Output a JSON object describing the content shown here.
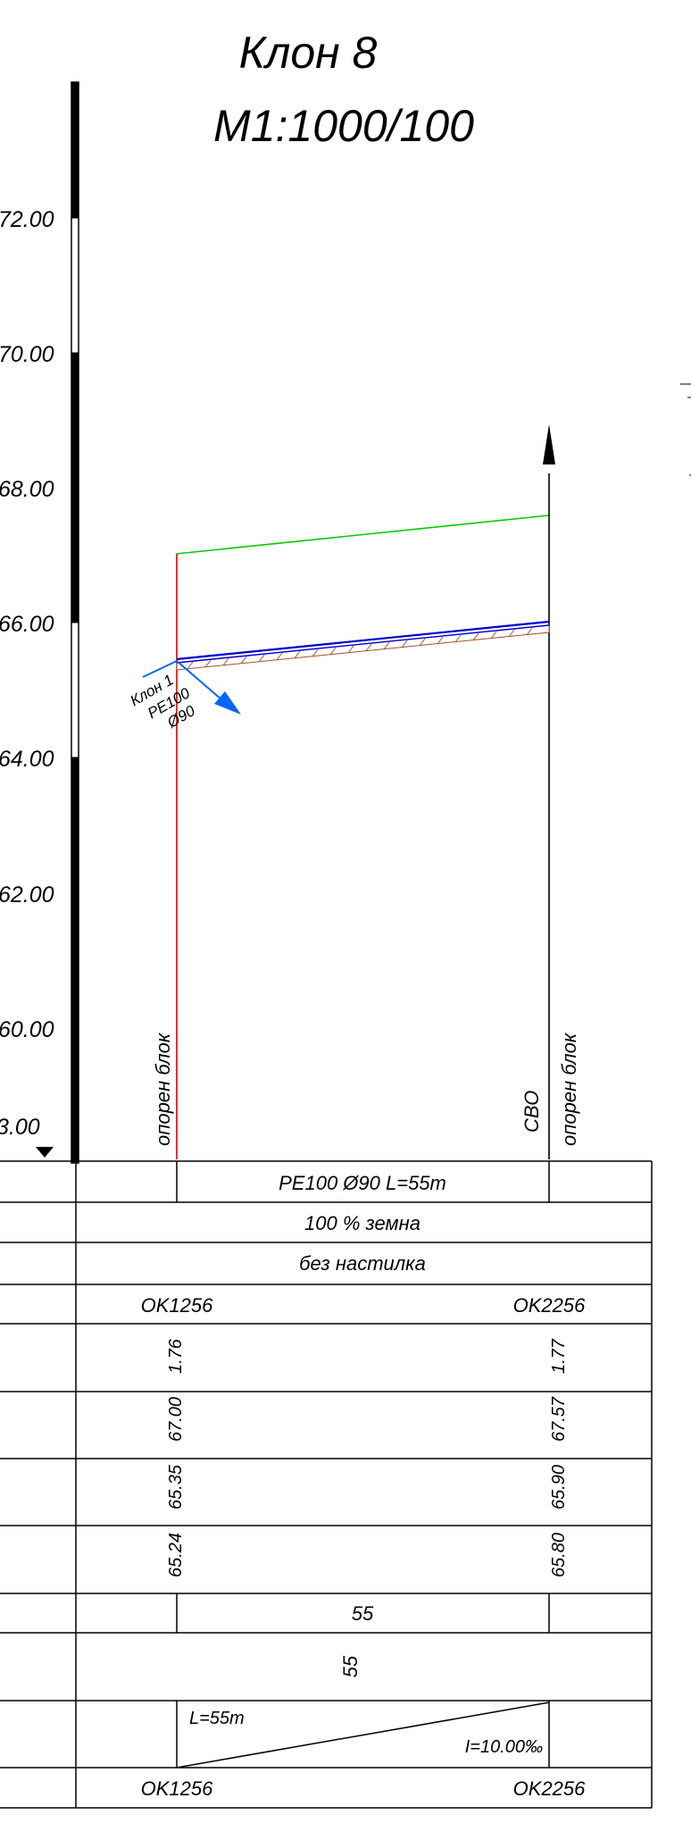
{
  "header": {
    "title": "Клон 8",
    "scale": "М1:1000/100"
  },
  "axis": {
    "ticks": [
      "72.00",
      "70.00",
      "68.00",
      "66.00",
      "64.00",
      "62.00",
      "60.00"
    ],
    "partial_tick": "3.00"
  },
  "profile": {
    "branch_label": [
      "Клон 1",
      "PE100",
      "Ø90"
    ],
    "left_node_label": "опорен блок",
    "right_node_label_1": "СВО",
    "right_node_label_2": "опорен блок",
    "colors": {
      "terrain": "#00cc00",
      "pipe": "#0000cc",
      "left_vertical": "#dd0000",
      "branch": "#0066ff",
      "sand_bed": "#a0522d"
    }
  },
  "table": {
    "pipe_spec": "PE100 Ø90 L=55m",
    "soil": "100 % земна",
    "surface": "без настилка",
    "start_point": "OK1256",
    "end_point": "OK2256",
    "depth_start": "1.76",
    "depth_end": "1.77",
    "terrain_start": "67.00",
    "terrain_end": "67.57",
    "pipe_top_start": "65.35",
    "pipe_top_end": "65.90",
    "pipe_bottom_start": "65.24",
    "pipe_bottom_end": "65.80",
    "partial_length": "55",
    "total_length": "55",
    "slope_length": "L=55m",
    "slope_value": "I=10.00‰",
    "final_start": "OK1256",
    "final_end": "OK2256"
  }
}
